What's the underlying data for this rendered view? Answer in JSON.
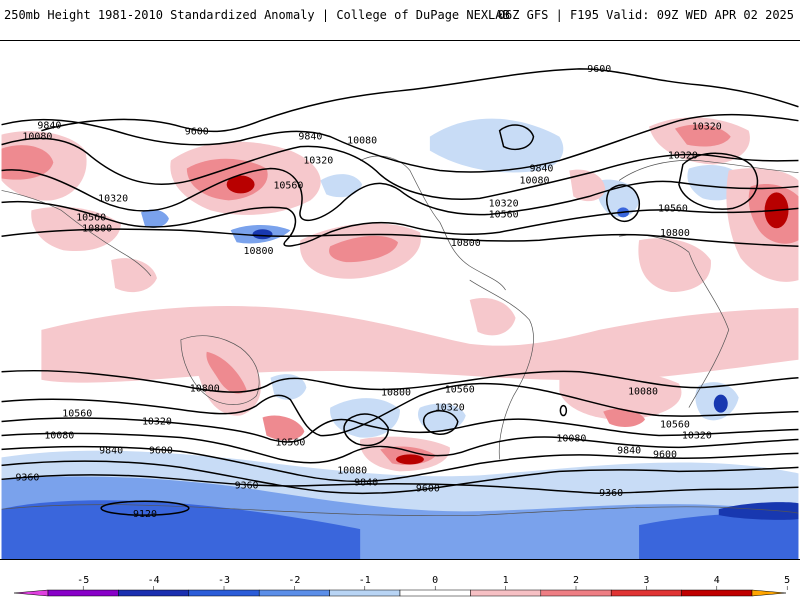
{
  "header": {
    "left": "250mb Height 1981-2010 Standardized Anomaly | College of DuPage NEXLAB",
    "right": "06Z GFS | F195 Valid: 09Z WED APR 02 2025"
  },
  "contour_labels": [
    {
      "text": "9600"
    },
    {
      "text": "9600"
    },
    {
      "text": "9840"
    },
    {
      "text": "10080"
    },
    {
      "text": "9840"
    },
    {
      "text": "10080"
    },
    {
      "text": "10320"
    },
    {
      "text": "10320"
    },
    {
      "text": "10560"
    },
    {
      "text": "10560"
    },
    {
      "text": "10800"
    },
    {
      "text": "10800"
    },
    {
      "text": "10320"
    },
    {
      "text": "9840"
    },
    {
      "text": "10080"
    },
    {
      "text": "10320"
    },
    {
      "text": "10560"
    },
    {
      "text": "10800"
    },
    {
      "text": "10560"
    },
    {
      "text": "10800"
    },
    {
      "text": "10320"
    },
    {
      "text": "10800"
    },
    {
      "text": "10560"
    },
    {
      "text": "10320"
    },
    {
      "text": "10080"
    },
    {
      "text": "9840"
    },
    {
      "text": "9600"
    },
    {
      "text": "10560"
    },
    {
      "text": "10320"
    },
    {
      "text": "10080"
    },
    {
      "text": "9840"
    },
    {
      "text": "9600"
    },
    {
      "text": "10800"
    },
    {
      "text": "10560"
    },
    {
      "text": "10320"
    },
    {
      "text": "10080"
    },
    {
      "text": "9840"
    },
    {
      "text": "9600"
    },
    {
      "text": "10560"
    },
    {
      "text": "10080"
    },
    {
      "text": "9360"
    },
    {
      "text": "9360"
    },
    {
      "text": "9360"
    },
    {
      "text": "9120"
    }
  ],
  "legend": {
    "ticks": [
      "-5",
      "-4",
      "-3",
      "-2",
      "-1",
      "0",
      "1",
      "2",
      "3",
      "4",
      "5"
    ],
    "colors": [
      "#e040e0",
      "#8800c8",
      "#1a2fb0",
      "#2b5cd8",
      "#5b8ee8",
      "#b8d4f4",
      "#ffffff",
      "#f6c0c4",
      "#ee7e84",
      "#e03434",
      "#c00000",
      "#ffa500"
    ]
  },
  "colors": {
    "pos1": "#f6c8cc",
    "pos2": "#ee8a90",
    "pos3": "#d81e1e",
    "pos4": "#b80000",
    "neg1": "#c8dcf6",
    "neg2": "#7aa2ec",
    "neg3": "#3a66dc",
    "neg4": "#1838b0"
  }
}
